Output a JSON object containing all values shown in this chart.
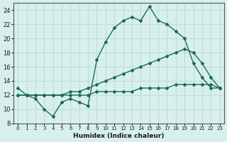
{
  "xlabel": "Humidex (Indice chaleur)",
  "bg_color": "#d8f0ec",
  "grid_color": "#c0ddd8",
  "line_color": "#1a6b5a",
  "xlim": [
    -0.5,
    23.5
  ],
  "ylim": [
    8,
    25
  ],
  "xticks": [
    0,
    1,
    2,
    3,
    4,
    5,
    6,
    7,
    8,
    9,
    10,
    11,
    12,
    13,
    14,
    15,
    16,
    17,
    18,
    19,
    20,
    21,
    22,
    23
  ],
  "yticks": [
    8,
    10,
    12,
    14,
    16,
    18,
    20,
    22,
    24
  ],
  "line1_x": [
    0,
    1,
    2,
    3,
    4,
    5,
    6,
    7,
    8,
    9,
    10,
    11,
    12,
    13,
    14,
    15,
    16,
    17,
    18,
    19,
    20,
    21,
    22,
    23
  ],
  "line1_y": [
    13,
    12,
    11.5,
    10,
    9,
    11,
    11.5,
    11,
    10.5,
    17,
    19.5,
    21.5,
    22.5,
    23,
    22.5,
    24.5,
    22.5,
    22,
    21,
    20,
    16.5,
    14.5,
    13,
    13
  ],
  "line2_x": [
    0,
    1,
    2,
    3,
    4,
    5,
    6,
    7,
    8,
    9,
    10,
    11,
    12,
    13,
    14,
    15,
    16,
    17,
    18,
    19,
    20,
    21,
    22,
    23
  ],
  "line2_y": [
    12,
    12,
    12,
    12,
    12,
    12,
    12.5,
    12.5,
    13,
    13.5,
    14,
    14.5,
    15,
    15.5,
    16,
    16.5,
    17,
    17.5,
    18,
    18.5,
    18,
    16.5,
    14.5,
    13
  ],
  "line3_x": [
    0,
    1,
    2,
    3,
    4,
    5,
    6,
    7,
    8,
    9,
    10,
    11,
    12,
    13,
    14,
    15,
    16,
    17,
    18,
    19,
    20,
    21,
    22,
    23
  ],
  "line3_y": [
    12,
    12,
    12,
    12,
    12,
    12,
    12,
    12,
    12,
    12.5,
    12.5,
    12.5,
    12.5,
    12.5,
    13,
    13,
    13,
    13,
    13.5,
    13.5,
    13.5,
    13.5,
    13.5,
    13
  ]
}
